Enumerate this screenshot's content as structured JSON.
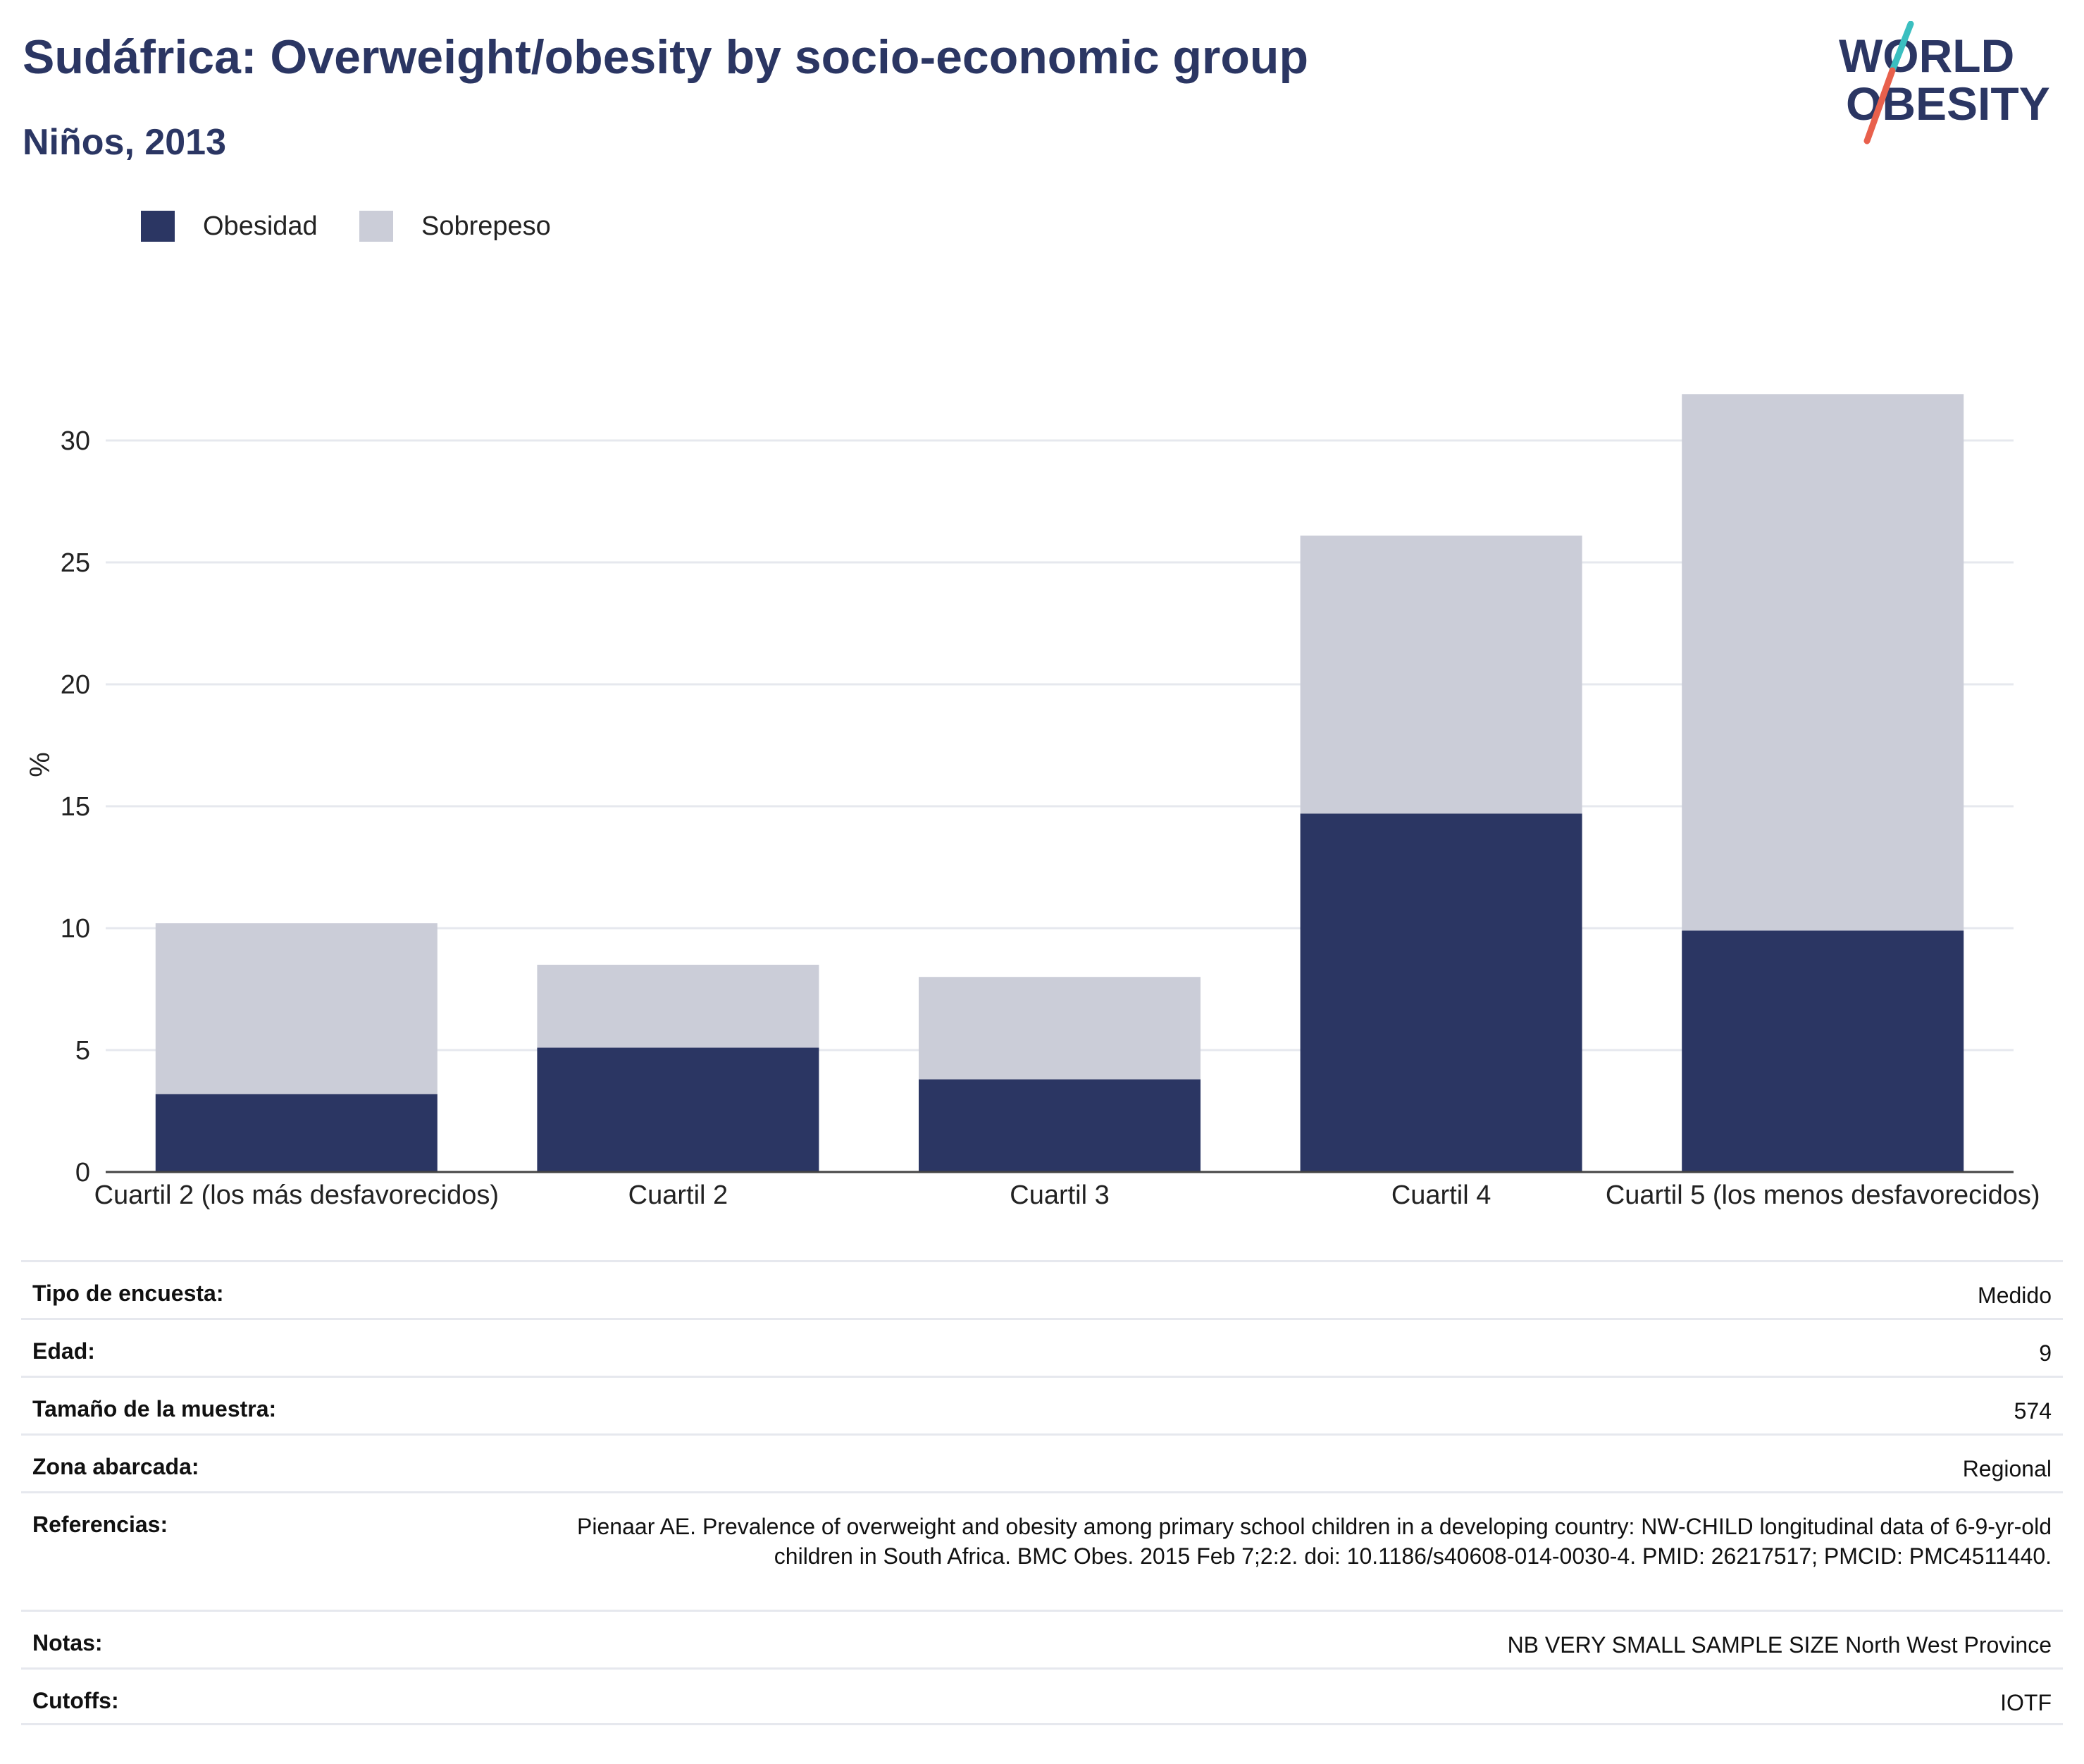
{
  "header": {
    "title": "Sudáfrica: Overweight/obesity by socio-economic group",
    "subtitle": "Niños, 2013"
  },
  "logo": {
    "line1": "WORLD",
    "line2": "OBESITY",
    "colors": {
      "text": "#2b3663",
      "slash_top": "#3bbfc0",
      "slash_bottom": "#e8604c"
    }
  },
  "colors": {
    "obesidad": "#2b3663",
    "sobrepeso": "#cbcdd8",
    "grid": "#e6e8ee",
    "axis": "#444444"
  },
  "chart_data": {
    "type": "bar",
    "stacked": true,
    "ylabel": "%",
    "ylim": [
      0,
      32
    ],
    "yticks": [
      0,
      5,
      10,
      15,
      20,
      25,
      30
    ],
    "grid": true,
    "legend_position": "top-left",
    "categories": [
      "Cuartil 2 (los más desfavorecidos)",
      "Cuartil 2",
      "Cuartil 3",
      "Cuartil 4",
      "Cuartil 5 (los menos desfavorecidos)"
    ],
    "series": [
      {
        "name": "Obesidad",
        "color": "#2b3663",
        "values": [
          3.2,
          5.1,
          3.8,
          14.7,
          9.9
        ]
      },
      {
        "name": "Sobrepeso",
        "color": "#cbcdd8",
        "values": [
          7.0,
          3.4,
          4.2,
          11.4,
          22.0
        ]
      }
    ]
  },
  "meta": [
    {
      "label": "Tipo de encuesta:",
      "value": "Medido"
    },
    {
      "label": "Edad:",
      "value": "9"
    },
    {
      "label": "Tamaño de la muestra:",
      "value": "574"
    },
    {
      "label": "Zona abarcada:",
      "value": "Regional"
    },
    {
      "label": "Referencias:",
      "value": "Pienaar AE. Prevalence of overweight and obesity among primary school children in a developing country: NW-CHILD longitudinal data of 6-9-yr-old children in South Africa. BMC Obes. 2015 Feb 7;2:2. doi: 10.1186/s40608-014-0030-4. PMID: 26217517; PMCID: PMC4511440."
    },
    {
      "label": "Notas:",
      "value": "NB VERY SMALL SAMPLE SIZE North West Province"
    },
    {
      "label": "Cutoffs:",
      "value": "IOTF"
    }
  ]
}
